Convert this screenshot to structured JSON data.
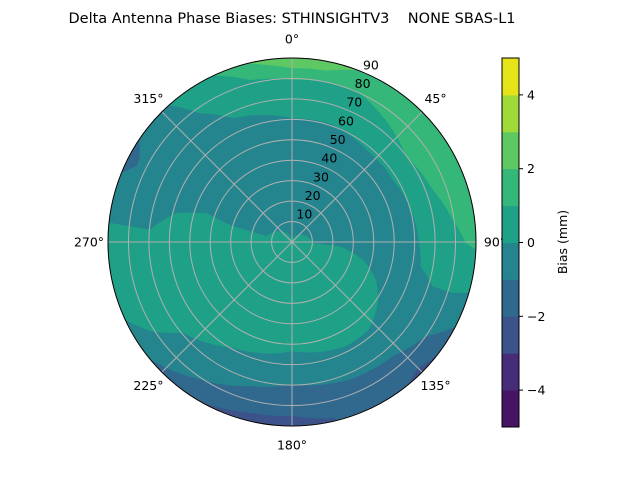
{
  "chart_data": {
    "type": "contour-polar",
    "title": "Delta Antenna Phase Biases: STHINSIGHTV3    NONE SBAS-L1",
    "theta_zero": "N",
    "theta_direction": "clockwise",
    "rlim": [
      0,
      90
    ],
    "grid": true,
    "theta_ticks": [
      {
        "angle": 0,
        "label": "0°"
      },
      {
        "angle": 45,
        "label": "45°"
      },
      {
        "angle": 90,
        "label": "90°"
      },
      {
        "angle": 135,
        "label": "135°"
      },
      {
        "angle": 180,
        "label": "180°"
      },
      {
        "angle": 225,
        "label": "225°"
      },
      {
        "angle": 270,
        "label": "270°"
      },
      {
        "angle": 315,
        "label": "315°"
      }
    ],
    "r_ticks": [
      10,
      20,
      30,
      40,
      50,
      60,
      70,
      80,
      90
    ],
    "r_tick_labels": [
      "10",
      "20",
      "30",
      "40",
      "50",
      "60",
      "70",
      "80",
      "90"
    ],
    "colorbar": {
      "label": "Bias (mm)",
      "position": "right",
      "levels": [
        -5,
        -4,
        -3,
        -2,
        -1,
        0,
        1,
        2,
        3,
        4,
        5
      ],
      "colors": [
        "#471365",
        "#472c7a",
        "#3b528b",
        "#31688e",
        "#25858e",
        "#1fa187",
        "#35b779",
        "#5ec962",
        "#a0da39",
        "#e5e419"
      ],
      "ticks": [
        -4,
        -2,
        0,
        2,
        4
      ],
      "tick_labels": [
        "−4",
        "−2",
        "0",
        "2",
        "4"
      ]
    },
    "background_range": [
      0,
      1
    ],
    "regions": [
      {
        "range": [
          -1,
          0
        ],
        "points": [
          [
            276,
            90
          ],
          [
            318,
            90
          ],
          [
            324.4,
            77.5
          ],
          [
            334.6,
            67
          ],
          [
            0,
            60.5
          ],
          [
            19.3,
            60.7
          ],
          [
            38.8,
            58
          ],
          [
            58.3,
            58
          ],
          [
            73,
            60
          ],
          [
            89,
            62
          ],
          [
            100.7,
            64
          ],
          [
            107.5,
            72
          ],
          [
            107.6,
            82.5
          ],
          [
            106,
            90
          ],
          [
            245,
            90
          ],
          [
            237.9,
            82
          ],
          [
            230.1,
            69.3
          ],
          [
            209.1,
            59.2
          ],
          [
            180,
            53.4
          ],
          [
            152.5,
            57.4
          ],
          [
            138.5,
            57
          ],
          [
            125.3,
            51.5
          ],
          [
            114.1,
            45
          ],
          [
            104,
            35.7
          ],
          [
            95.2,
            23.4
          ],
          [
            92.7,
            10.3
          ],
          [
            0,
            0
          ],
          [
            282.5,
            12.8
          ],
          [
            284.9,
            29.8
          ],
          [
            288.7,
            44
          ],
          [
            284.1,
            58.2
          ],
          [
            275,
            69.8
          ]
        ]
      },
      {
        "range": [
          -2,
          -1
        ],
        "points": [
          [
            117.6,
            90
          ],
          [
            230.4,
            90
          ],
          [
            213.8,
            80.9
          ],
          [
            196.3,
            73.4
          ],
          [
            180,
            69.7
          ],
          [
            157.3,
            72.9
          ],
          [
            138.6,
            74.5
          ],
          [
            125.1,
            80.1
          ]
        ]
      },
      {
        "range": [
          -2,
          -1
        ],
        "points": [
          [
            292,
            90
          ],
          [
            304,
            90
          ],
          [
            299,
            85
          ],
          [
            296,
            84.5
          ]
        ]
      },
      {
        "range": [
          -3,
          -2
        ],
        "points": [
          [
            165,
            90
          ],
          [
            209.8,
            90
          ],
          [
            193.9,
            86
          ],
          [
            180,
            85
          ],
          [
            167,
            88.5
          ]
        ]
      },
      {
        "range": [
          -3,
          -2
        ],
        "points": [
          [
            128,
            90
          ],
          [
            141,
            90
          ],
          [
            135,
            87
          ]
        ]
      },
      {
        "range": [
          1,
          2
        ],
        "points": [
          [
            334.7,
            90
          ],
          [
            92.4,
            90
          ],
          [
            90.3,
            85
          ],
          [
            82.1,
            79.4
          ],
          [
            69.6,
            73.4
          ],
          [
            53.2,
            69.8
          ],
          [
            35.9,
            75.7
          ],
          [
            24.4,
            80
          ],
          [
            14.5,
            80.2
          ],
          [
            0,
            79.3
          ],
          [
            345.4,
            81.9
          ]
        ]
      },
      {
        "range": [
          2,
          3
        ],
        "points": [
          [
            345.8,
            90
          ],
          [
            21,
            90
          ],
          [
            19.5,
            89.2
          ],
          [
            11.3,
            85.5
          ],
          [
            0,
            85
          ],
          [
            351.8,
            87.5
          ]
        ]
      }
    ]
  }
}
